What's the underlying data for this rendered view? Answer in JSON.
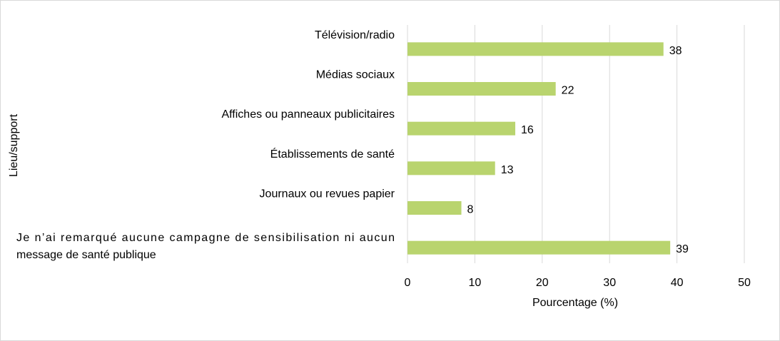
{
  "chart_data": {
    "type": "bar",
    "orientation": "horizontal",
    "categories": [
      "Télévision/radio",
      "Médias sociaux",
      "Affiches ou panneaux publicitaires",
      "Établissements de santé",
      "Journaux ou revues papier",
      "Je n’ai remarqué aucune campagne de sensibilisation ni aucun message de santé publique"
    ],
    "category_lines": [
      [
        "Télévision/radio"
      ],
      [
        "Médias sociaux"
      ],
      [
        "Affiches ou panneaux publicitaires"
      ],
      [
        "Établissements de santé"
      ],
      [
        "Journaux ou revues papier"
      ],
      [
        "Je n’ai remarqué aucune campagne de sensibilisation ni aucun",
        "message de santé publique"
      ]
    ],
    "values": [
      38,
      22,
      16,
      13,
      8,
      39
    ],
    "xlabel": "Pourcentage (%)",
    "ylabel": "Lieu/support",
    "xlim": [
      0,
      50
    ],
    "xticks": [
      0,
      10,
      20,
      30,
      40,
      50
    ],
    "grid": "vertical",
    "legend": "none",
    "bar_color": "#b9d46e",
    "grid_color": "#d9d9d9"
  }
}
